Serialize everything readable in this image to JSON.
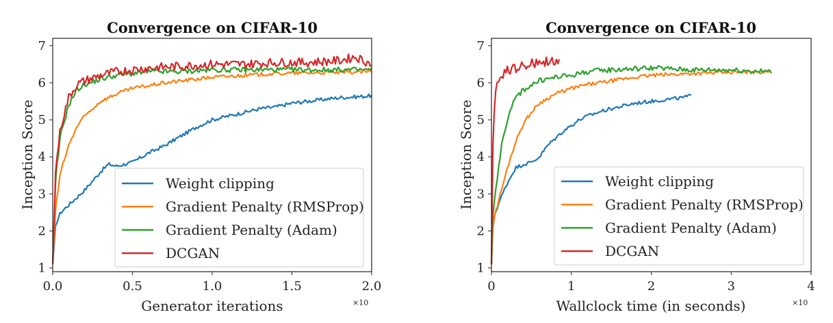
{
  "colors": {
    "weight_clipping": "#1f77b4",
    "gp_rmsprop": "#ff7f0e",
    "gp_adam": "#2ca02c",
    "dcgan": "#d62728"
  },
  "chart_data": [
    {
      "type": "line",
      "title": "Convergence on CIFAR-10",
      "xlabel": "Generator iterations",
      "ylabel": "Inception Score",
      "x_multiplier": "×10",
      "xlim": [
        0,
        2.0
      ],
      "ylim": [
        0.9,
        7.2
      ],
      "xticks": [
        "0.0",
        "0.5",
        "1.0",
        "1.5",
        "2.0"
      ],
      "xtick_values": [
        0,
        0.5,
        1.0,
        1.5,
        2.0
      ],
      "yticks": [
        "1",
        "2",
        "3",
        "4",
        "5",
        "6",
        "7"
      ],
      "ytick_values": [
        1,
        2,
        3,
        4,
        5,
        6,
        7
      ],
      "legend_position": "lower-right",
      "series": [
        {
          "name": "Weight clipping",
          "color_key": "weight_clipping",
          "noise": 0.05,
          "x": [
            0,
            0.02,
            0.05,
            0.1,
            0.2,
            0.3,
            0.35,
            0.4,
            0.5,
            0.6,
            0.7,
            0.8,
            0.9,
            1.0,
            1.1,
            1.2,
            1.3,
            1.4,
            1.5,
            1.6,
            1.7,
            1.8,
            1.9,
            2.0
          ],
          "values": [
            1.1,
            2.2,
            2.5,
            2.7,
            3.1,
            3.6,
            3.8,
            3.75,
            3.85,
            4.1,
            4.3,
            4.55,
            4.8,
            5.0,
            5.1,
            5.2,
            5.3,
            5.35,
            5.45,
            5.5,
            5.55,
            5.6,
            5.62,
            5.65
          ]
        },
        {
          "name": "Gradient Penalty (RMSProp)",
          "color_key": "gp_rmsprop",
          "noise": 0.05,
          "x": [
            0,
            0.02,
            0.05,
            0.1,
            0.15,
            0.2,
            0.3,
            0.4,
            0.5,
            0.6,
            0.7,
            0.8,
            0.9,
            1.0,
            1.2,
            1.4,
            1.6,
            1.8,
            2.0
          ],
          "values": [
            1.1,
            2.7,
            3.6,
            4.3,
            4.8,
            5.1,
            5.5,
            5.7,
            5.85,
            5.92,
            6.0,
            6.05,
            6.1,
            6.15,
            6.2,
            6.25,
            6.27,
            6.28,
            6.3
          ]
        },
        {
          "name": "Gradient Penalty (Adam)",
          "color_key": "gp_adam",
          "noise": 0.07,
          "x": [
            0,
            0.02,
            0.05,
            0.1,
            0.15,
            0.2,
            0.3,
            0.4,
            0.5,
            0.6,
            0.8,
            1.0,
            1.2,
            1.4,
            1.6,
            1.8,
            2.0
          ],
          "values": [
            1.1,
            3.5,
            4.6,
            5.4,
            5.8,
            5.95,
            6.1,
            6.2,
            6.25,
            6.3,
            6.3,
            6.35,
            6.35,
            6.35,
            6.35,
            6.35,
            6.35
          ]
        },
        {
          "name": "DCGAN",
          "color_key": "dcgan",
          "noise": 0.12,
          "x": [
            0,
            0.02,
            0.05,
            0.1,
            0.15,
            0.2,
            0.3,
            0.4,
            0.5,
            0.6,
            0.8,
            1.0,
            1.2,
            1.4,
            1.6,
            1.8,
            1.9,
            1.95,
            2.0
          ],
          "values": [
            1.1,
            3.8,
            4.8,
            5.6,
            5.95,
            6.05,
            6.2,
            6.3,
            6.35,
            6.4,
            6.45,
            6.5,
            6.5,
            6.55,
            6.55,
            6.6,
            6.7,
            6.6,
            6.5
          ]
        }
      ]
    },
    {
      "type": "line",
      "title": "Convergence on CIFAR-10",
      "xlabel": "Wallclock time (in seconds)",
      "ylabel": "Inception Score",
      "x_multiplier": "×10",
      "xlim": [
        0,
        4
      ],
      "ylim": [
        0.9,
        7.2
      ],
      "xticks": [
        "0",
        "1",
        "2",
        "3",
        "4"
      ],
      "xtick_values": [
        0,
        1,
        2,
        3,
        4
      ],
      "yticks": [
        "1",
        "2",
        "3",
        "4",
        "5",
        "6",
        "7"
      ],
      "ytick_values": [
        1,
        2,
        3,
        4,
        5,
        6,
        7
      ],
      "legend_position": "lower-right",
      "series": [
        {
          "name": "Weight clipping",
          "color_key": "weight_clipping",
          "noise": 0.05,
          "x": [
            0,
            0.02,
            0.05,
            0.1,
            0.2,
            0.3,
            0.4,
            0.5,
            0.6,
            0.7,
            0.8,
            0.9,
            1.0,
            1.1,
            1.2,
            1.4,
            1.6,
            1.8,
            2.0,
            2.2,
            2.4,
            2.5
          ],
          "values": [
            1.1,
            2.3,
            2.5,
            2.8,
            3.3,
            3.7,
            3.8,
            3.85,
            4.0,
            4.3,
            4.5,
            4.7,
            4.85,
            5.0,
            5.1,
            5.25,
            5.35,
            5.45,
            5.5,
            5.55,
            5.6,
            5.65
          ]
        },
        {
          "name": "Gradient Penalty (RMSProp)",
          "color_key": "gp_rmsprop",
          "noise": 0.05,
          "x": [
            0,
            0.02,
            0.05,
            0.1,
            0.2,
            0.3,
            0.4,
            0.5,
            0.6,
            0.8,
            1.0,
            1.2,
            1.5,
            1.8,
            2.0,
            2.5,
            3.0,
            3.5
          ],
          "values": [
            1.1,
            2.2,
            2.5,
            2.9,
            3.7,
            4.4,
            4.9,
            5.2,
            5.45,
            5.7,
            5.85,
            5.95,
            6.05,
            6.15,
            6.2,
            6.25,
            6.28,
            6.3
          ]
        },
        {
          "name": "Gradient Penalty (Adam)",
          "color_key": "gp_adam",
          "noise": 0.07,
          "x": [
            0,
            0.02,
            0.05,
            0.1,
            0.15,
            0.2,
            0.3,
            0.4,
            0.5,
            0.6,
            0.8,
            1.0,
            1.2,
            1.5,
            2.0,
            2.5,
            3.0,
            3.5
          ],
          "values": [
            1.1,
            2.5,
            3.1,
            3.9,
            4.6,
            5.0,
            5.6,
            5.8,
            5.95,
            6.05,
            6.15,
            6.2,
            6.3,
            6.35,
            6.4,
            6.35,
            6.35,
            6.3
          ]
        },
        {
          "name": "DCGAN",
          "color_key": "dcgan",
          "noise": 0.14,
          "x": [
            0,
            0.01,
            0.03,
            0.05,
            0.1,
            0.15,
            0.2,
            0.3,
            0.4,
            0.5,
            0.6,
            0.7,
            0.75,
            0.8,
            0.85
          ],
          "values": [
            1.1,
            3.8,
            5.2,
            5.7,
            6.1,
            6.2,
            6.35,
            6.4,
            6.45,
            6.5,
            6.55,
            6.6,
            6.65,
            6.55,
            6.5
          ]
        }
      ]
    }
  ]
}
